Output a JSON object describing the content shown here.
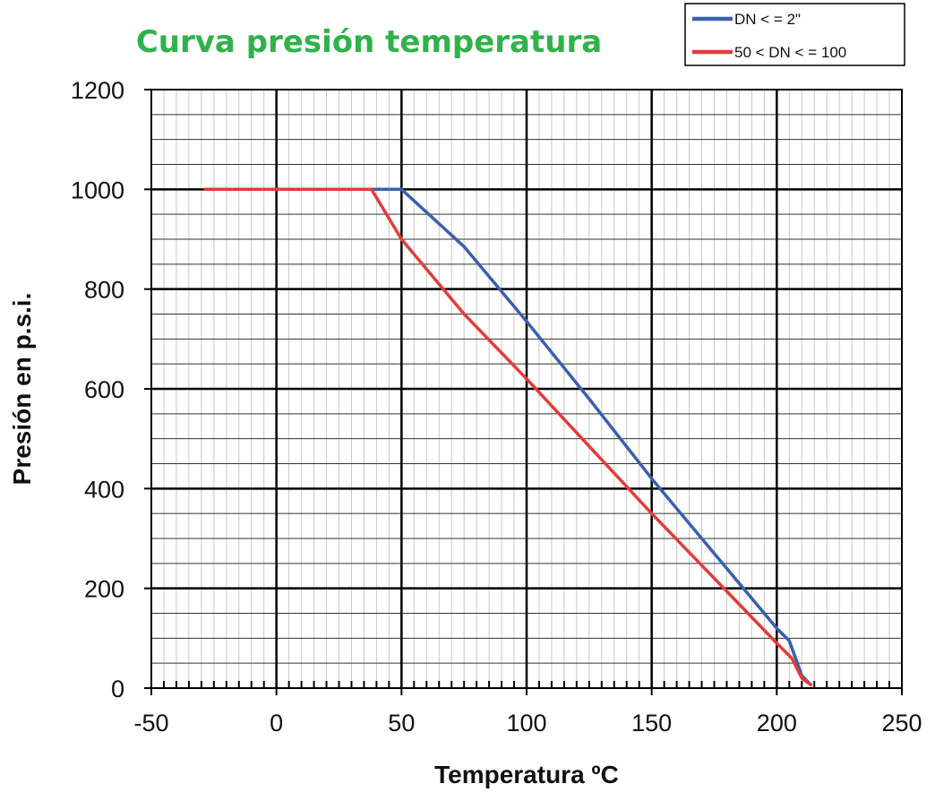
{
  "chart_data": {
    "type": "line",
    "title": "Curva presión temperatura",
    "title_color": "#2fb24a",
    "xlabel": "Temperatura ºC",
    "ylabel": "Presión en p.s.i.",
    "xlim": [
      -50,
      250
    ],
    "ylim": [
      0,
      1200
    ],
    "x_ticks": [
      "-50",
      "0",
      "50",
      "100",
      "150",
      "200",
      "250"
    ],
    "y_ticks": [
      "0",
      "200",
      "400",
      "600",
      "800",
      "1000",
      "1200"
    ],
    "grid": true,
    "legend_position": "top-right",
    "series": [
      {
        "name": "DN < = 2\"",
        "color": "#3a5fae",
        "points": [
          [
            38,
            1000
          ],
          [
            50,
            1000
          ],
          [
            75,
            885
          ],
          [
            100,
            735
          ],
          [
            125,
            580
          ],
          [
            150,
            420
          ],
          [
            175,
            270
          ],
          [
            200,
            120
          ],
          [
            205,
            95
          ],
          [
            210,
            25
          ],
          [
            214,
            5
          ]
        ]
      },
      {
        "name": "50 < DN < = 100",
        "color": "#e43b3b",
        "points": [
          [
            -29,
            1000
          ],
          [
            38,
            1000
          ],
          [
            50,
            900
          ],
          [
            75,
            750
          ],
          [
            100,
            620
          ],
          [
            125,
            485
          ],
          [
            150,
            350
          ],
          [
            175,
            220
          ],
          [
            200,
            90
          ],
          [
            206,
            60
          ],
          [
            210,
            20
          ],
          [
            214,
            5
          ]
        ]
      }
    ]
  }
}
